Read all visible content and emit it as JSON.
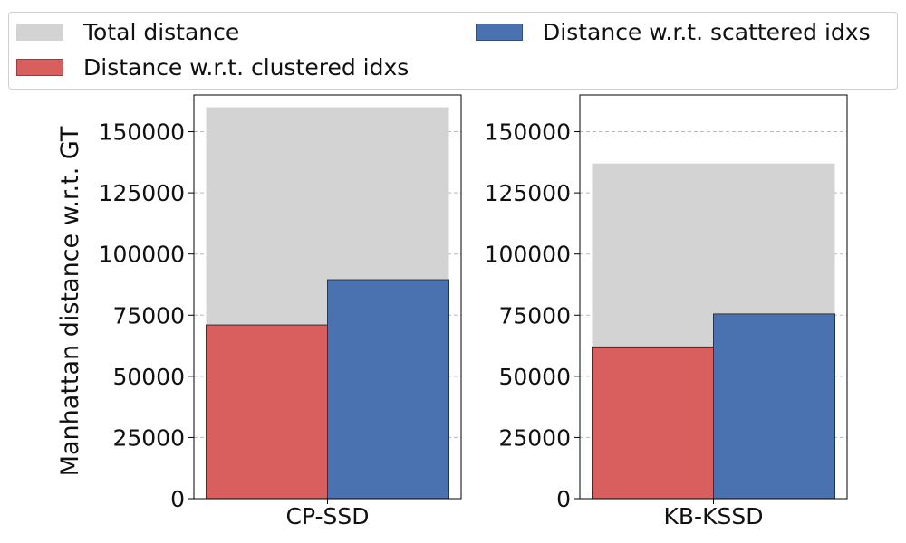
{
  "legend": {
    "items": [
      {
        "label": "Total distance",
        "color": "#d3d3d3",
        "edge": "#d3d3d3"
      },
      {
        "label": "Distance w.r.t. clustered idxs",
        "color": "#d95f5f",
        "edge": "#a33a3a"
      },
      {
        "label": "Distance w.r.t. scattered idxs",
        "color": "#4b72b0",
        "edge": "#2f4f80"
      }
    ]
  },
  "chart_data": [
    {
      "type": "bar",
      "category": "CP-SSD",
      "ylabel": "Manhattan distance w.r.t. GT",
      "ylim": [
        0,
        165000
      ],
      "yticks": [
        0,
        25000,
        50000,
        75000,
        100000,
        125000,
        150000
      ],
      "grid": true,
      "series": [
        {
          "name": "Total distance",
          "values": [
            160000
          ],
          "color": "#d3d3d3"
        },
        {
          "name": "Distance w.r.t. clustered idxs",
          "values": [
            71000
          ],
          "color": "#d95f5f"
        },
        {
          "name": "Distance w.r.t. scattered idxs",
          "values": [
            89500
          ],
          "color": "#4b72b0"
        }
      ]
    },
    {
      "type": "bar",
      "category": "KB-KSSD",
      "ylabel": "",
      "ylim": [
        0,
        165000
      ],
      "yticks": [
        0,
        25000,
        50000,
        75000,
        100000,
        125000,
        150000
      ],
      "grid": true,
      "series": [
        {
          "name": "Total distance",
          "values": [
            137000
          ],
          "color": "#d3d3d3"
        },
        {
          "name": "Distance w.r.t. clustered idxs",
          "values": [
            62000
          ],
          "color": "#d95f5f"
        },
        {
          "name": "Distance w.r.t. scattered idxs",
          "values": [
            75500
          ],
          "color": "#4b72b0"
        }
      ]
    }
  ]
}
